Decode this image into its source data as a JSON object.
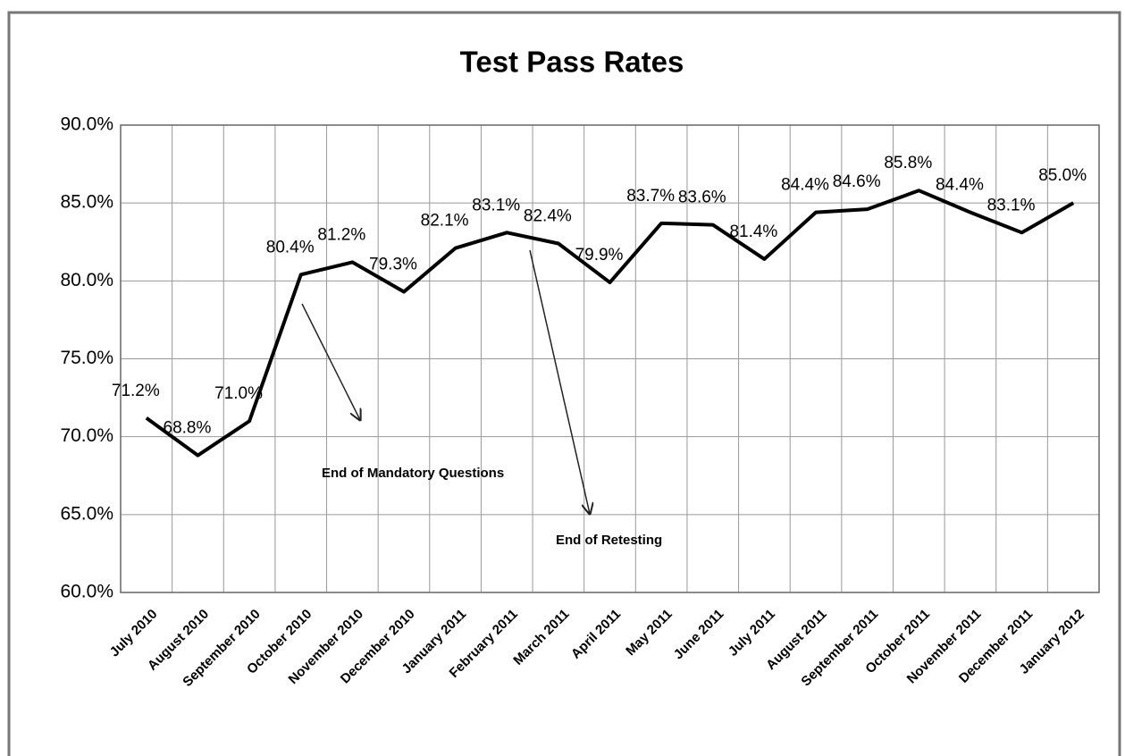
{
  "chart_data": {
    "type": "line",
    "title": "Test Pass Rates",
    "categories": [
      "July 2010",
      "August 2010",
      "September 2010",
      "October 2010",
      "November 2010",
      "December 2010",
      "January 2011",
      "February 2011",
      "March 2011",
      "April 2011",
      "May 2011",
      "June 2011",
      "July 2011",
      "August 2011",
      "September 2011",
      "October 2011",
      "November 2011",
      "December 2011",
      "January 2012"
    ],
    "values": [
      71.2,
      68.8,
      71.0,
      80.4,
      81.2,
      79.3,
      82.1,
      83.1,
      82.4,
      79.9,
      83.7,
      83.6,
      81.4,
      84.4,
      84.6,
      85.8,
      84.4,
      83.1,
      85.0
    ],
    "value_labels": [
      "71.2%",
      "68.8%",
      "71.0%",
      "80.4%",
      "81.2%",
      "79.3%",
      "82.1%",
      "83.1%",
      "82.4%",
      "79.9%",
      "83.7%",
      "83.6%",
      "81.4%",
      "84.4%",
      "84.6%",
      "85.8%",
      "84.4%",
      "83.1%",
      "85.0%"
    ],
    "color": "#000000",
    "ylim": [
      60,
      90
    ],
    "yticks": [
      {
        "value": 60,
        "label": "60.0%"
      },
      {
        "value": 65,
        "label": "65.0%"
      },
      {
        "value": 70,
        "label": "70.0%"
      },
      {
        "value": 75,
        "label": "75.0%"
      },
      {
        "value": 80,
        "label": "80.0%"
      },
      {
        "value": 85,
        "label": "85.0%"
      },
      {
        "value": 90,
        "label": "90.0%"
      }
    ],
    "grid": true,
    "annotations": [
      "End of Mandatory Questions",
      "End of Retesting"
    ]
  }
}
